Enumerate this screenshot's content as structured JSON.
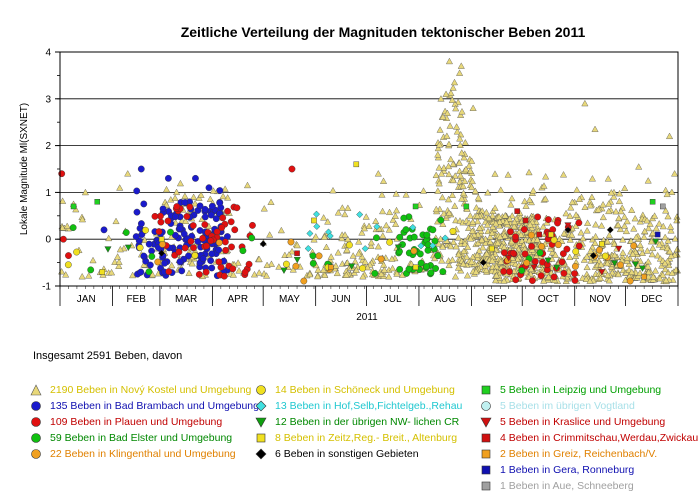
{
  "chart_data": {
    "type": "scatter",
    "title": "Zeitliche Verteilung der Magnituden tektonischer Beben 2011",
    "ylabel": "Lokale Magnitude Ml(SXNET)",
    "xlabel": "2011",
    "ylim": [
      -1,
      4
    ],
    "yticks": [
      "-1",
      "0",
      "1",
      "2",
      "3",
      "4"
    ],
    "months": [
      "JAN",
      "FEB",
      "MAR",
      "APR",
      "MAY",
      "JUN",
      "JUL",
      "AUG",
      "SEP",
      "OCT",
      "NOV",
      "DEC"
    ],
    "grid_lines_y": [
      0,
      1,
      2,
      3
    ]
  },
  "summary": "Insgesamt 2591 Beben, davon",
  "legend": [
    {
      "label": "2190 Beben in Nový Kostel und Umgebung",
      "color": "#e8d87a",
      "text_color": "#d4c000",
      "shape": "triangle"
    },
    {
      "label": "135 Beben in Bad Brambach und Umgebung",
      "color": "#1a1acc",
      "text_color": "#1010b0",
      "shape": "circle"
    },
    {
      "label": "109 Beben in Plauen und Umgebung",
      "color": "#e01010",
      "text_color": "#c00000",
      "shape": "circle"
    },
    {
      "label": "59 Beben in Bad Elster und Umgebung",
      "color": "#10c010",
      "text_color": "#008800",
      "shape": "circle"
    },
    {
      "label": "22 Beben in Klingenthal und Umgebung",
      "color": "#f0a020",
      "text_color": "#e08000",
      "shape": "circle"
    },
    {
      "label": "14 Beben in Schöneck und Umgebung",
      "color": "#f0e020",
      "text_color": "#d4c000",
      "shape": "circle"
    },
    {
      "label": "13 Beben in Hof,Selb,Fichtelgeb.,Rehau",
      "color": "#40e0e0",
      "text_color": "#20c8d0",
      "shape": "diamond"
    },
    {
      "label": "12 Beben in der übrigen NW- lichen CR",
      "color": "#10a010",
      "text_color": "#008800",
      "shape": "triangle-down"
    },
    {
      "label": "8 Beben in Zeitz,Reg.- Breit., Altenburg",
      "color": "#f0e020",
      "text_color": "#d4c000",
      "shape": "square"
    },
    {
      "label": "6 Beben in sonstigen Gebieten",
      "color": "#000000",
      "text_color": "#000000",
      "shape": "diamond"
    },
    {
      "label": "5 Beben in Leipzig und Umgebung",
      "color": "#20d020",
      "text_color": "#00a000",
      "shape": "square"
    },
    {
      "label": "5 Beben im übrigen Vogtland",
      "color": "#c0f0f0",
      "text_color": "#a8e0e8",
      "shape": "circle"
    },
    {
      "label": "5 Beben in Kraslice und Umgebung",
      "color": "#d01010",
      "text_color": "#c00000",
      "shape": "triangle-down"
    },
    {
      "label": "4 Beben in Crimmitschau,Werdau,Zwickau",
      "color": "#d01010",
      "text_color": "#c00000",
      "shape": "square"
    },
    {
      "label": "2 Beben in Greiz, Reichenbach/V.",
      "color": "#f0a020",
      "text_color": "#e08000",
      "shape": "square"
    },
    {
      "label": "1 Beben in Gera, Ronneburg",
      "color": "#1010b0",
      "text_color": "#1010b0",
      "shape": "square"
    },
    {
      "label": "1 Beben in Aue, Schneeberg",
      "color": "#a0a0a0",
      "text_color": "#a0a0a0",
      "shape": "square"
    }
  ]
}
